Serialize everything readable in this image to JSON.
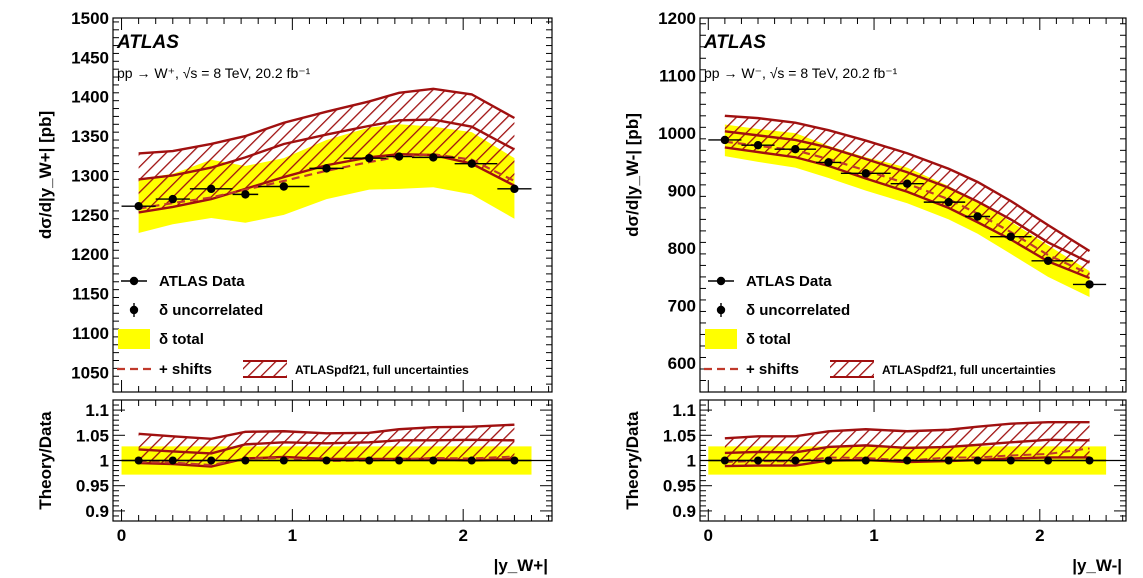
{
  "colors": {
    "total_band": "#ffff00",
    "hatch": "#a01010",
    "shift_line": "#c0392b",
    "data": "#000000"
  },
  "chart_data": [
    {
      "type": "line",
      "panel": "left",
      "atlas_label": "ATLAS",
      "process_label": "pp → W⁺, √s = 8 TeV, 20.2 fb⁻¹",
      "ylabel": "dσ/d|y_W+| [pb]",
      "xlabel": "|y_W+|",
      "ylim": [
        1025,
        1500
      ],
      "xlim": [
        -0.05,
        2.52
      ],
      "yticks": [
        "1050",
        "1100",
        "1150",
        "1200",
        "1250",
        "1300",
        "1350",
        "1400",
        "1450",
        "1500"
      ],
      "xticks": [
        "0",
        "1",
        "2"
      ],
      "legend": {
        "data": "ATLAS Data",
        "uncorr": "δ uncorrelated",
        "total": "δ total",
        "shifts": "+ shifts",
        "theory": "ATLASpdf21, full uncertainties"
      },
      "data_points": {
        "x": [
          0.1,
          0.3,
          0.525,
          0.725,
          0.95,
          1.2,
          1.45,
          1.625,
          1.825,
          2.05,
          2.3
        ],
        "xlo": [
          0.0,
          0.2,
          0.4,
          0.65,
          0.8,
          1.1,
          1.3,
          1.55,
          1.7,
          1.95,
          2.2
        ],
        "xhi": [
          0.2,
          0.4,
          0.65,
          0.8,
          1.1,
          1.3,
          1.55,
          1.7,
          1.95,
          2.2,
          2.4
        ],
        "y": [
          1261,
          1270,
          1283,
          1276,
          1286,
          1309,
          1322,
          1324,
          1323,
          1315,
          1283
        ]
      },
      "total_band": {
        "x": [
          0.1,
          0.3,
          0.525,
          0.725,
          0.95,
          1.2,
          1.45,
          1.625,
          1.825,
          2.05,
          2.3
        ],
        "lo": [
          1227,
          1238,
          1246,
          1240,
          1250,
          1270,
          1282,
          1283,
          1285,
          1276,
          1245
        ],
        "hi": [
          1296,
          1302,
          1320,
          1312,
          1322,
          1345,
          1361,
          1365,
          1362,
          1355,
          1322
        ]
      },
      "theory_band": {
        "x": [
          0.1,
          0.3,
          0.525,
          0.725,
          0.95,
          1.2,
          1.45,
          1.625,
          1.825,
          2.05,
          2.3
        ],
        "lo": [
          1253,
          1260,
          1270,
          1283,
          1298,
          1313,
          1323,
          1327,
          1326,
          1315,
          1287
        ],
        "mid": [
          1295,
          1300,
          1310,
          1323,
          1340,
          1352,
          1363,
          1370,
          1371,
          1362,
          1333
        ],
        "hi": [
          1328,
          1331,
          1340,
          1350,
          1367,
          1381,
          1394,
          1405,
          1410,
          1403,
          1373
        ]
      },
      "shift_line": {
        "x": [
          0.1,
          0.3,
          0.525,
          0.725,
          0.95,
          1.2,
          1.45,
          1.625,
          1.825,
          2.05,
          2.3
        ],
        "y": [
          1258,
          1265,
          1272,
          1282,
          1293,
          1306,
          1317,
          1324,
          1327,
          1320,
          1293
        ]
      },
      "ratio": {
        "ylabel": "Theory/Data",
        "ylim": [
          0.88,
          1.12
        ],
        "yticks": [
          "0.9",
          "0.95",
          "1",
          "1.05",
          "1.1"
        ],
        "total_lo": [
          0.972,
          0.972,
          0.972,
          0.972,
          0.972,
          0.972,
          0.972,
          0.972,
          0.972,
          0.972,
          0.972
        ],
        "total_hi": [
          1.028,
          1.028,
          1.028,
          1.028,
          1.028,
          1.028,
          1.028,
          1.028,
          1.028,
          1.028,
          1.028
        ],
        "theory_lo": [
          0.995,
          0.993,
          0.988,
          1.004,
          1.007,
          1.003,
          1.003,
          1.003,
          1.003,
          1.0,
          1.003
        ],
        "theory_mid": [
          1.022,
          1.018,
          1.014,
          1.032,
          1.036,
          1.034,
          1.036,
          1.04,
          1.04,
          1.041,
          1.04
        ],
        "theory_hi": [
          1.053,
          1.048,
          1.043,
          1.057,
          1.058,
          1.054,
          1.055,
          1.062,
          1.066,
          1.067,
          1.071
        ],
        "shift": [
          0.997,
          0.996,
          0.991,
          1.004,
          1.005,
          0.999,
          1.0,
          1.002,
          1.005,
          1.004,
          1.008
        ]
      }
    },
    {
      "type": "line",
      "panel": "right",
      "atlas_label": "ATLAS",
      "process_label": "pp → W⁻, √s = 8 TeV, 20.2 fb⁻¹",
      "ylabel": "dσ/d|y_W-| [pb]",
      "xlabel": "|y_W-|",
      "ylim": [
        550,
        1200
      ],
      "xlim": [
        -0.05,
        2.52
      ],
      "yticks": [
        "600",
        "700",
        "800",
        "900",
        "1000",
        "1100",
        "1200"
      ],
      "xticks": [
        "0",
        "1",
        "2"
      ],
      "legend": {
        "data": "ATLAS Data",
        "uncorr": "δ uncorrelated",
        "total": "δ total",
        "shifts": "+ shifts",
        "theory": "ATLASpdf21, full uncertainties"
      },
      "data_points": {
        "x": [
          0.1,
          0.3,
          0.525,
          0.725,
          0.95,
          1.2,
          1.45,
          1.625,
          1.825,
          2.05,
          2.3
        ],
        "xlo": [
          0.0,
          0.2,
          0.4,
          0.65,
          0.8,
          1.1,
          1.3,
          1.55,
          1.7,
          1.95,
          2.2
        ],
        "xhi": [
          0.2,
          0.4,
          0.65,
          0.8,
          1.1,
          1.3,
          1.55,
          1.7,
          1.95,
          2.2,
          2.4
        ],
        "y": [
          988,
          979,
          972,
          949,
          930,
          912,
          880,
          855,
          820,
          778,
          737
        ]
      },
      "total_band": {
        "x": [
          0.1,
          0.3,
          0.525,
          0.725,
          0.95,
          1.2,
          1.45,
          1.625,
          1.825,
          2.05,
          2.3
        ],
        "lo": [
          960,
          950,
          940,
          922,
          900,
          878,
          850,
          825,
          790,
          750,
          715
        ],
        "hi": [
          1015,
          1007,
          1000,
          978,
          958,
          940,
          908,
          880,
          846,
          805,
          760
        ]
      },
      "theory_band": {
        "x": [
          0.1,
          0.3,
          0.525,
          0.725,
          0.95,
          1.2,
          1.45,
          1.625,
          1.825,
          2.05,
          2.3
        ],
        "lo": [
          975,
          967,
          958,
          943,
          921,
          898,
          870,
          845,
          815,
          777,
          748
        ],
        "mid": [
          1003,
          996,
          988,
          975,
          955,
          932,
          905,
          881,
          850,
          810,
          775
        ],
        "hi": [
          1030,
          1026,
          1018,
          1005,
          987,
          965,
          938,
          915,
          882,
          840,
          795
        ]
      },
      "shift_line": {
        "x": [
          0.1,
          0.3,
          0.525,
          0.725,
          0.95,
          1.2,
          1.45,
          1.625,
          1.825,
          2.05,
          2.3
        ],
        "y": [
          985,
          978,
          970,
          955,
          935,
          912,
          885,
          860,
          828,
          788,
          755
        ]
      },
      "ratio": {
        "ylabel": "Theory/Data",
        "ylim": [
          0.88,
          1.12
        ],
        "yticks": [
          "0.9",
          "0.95",
          "1",
          "1.05",
          "1.1"
        ],
        "total_lo": [
          0.972,
          0.972,
          0.972,
          0.972,
          0.972,
          0.972,
          0.972,
          0.972,
          0.972,
          0.972,
          0.972
        ],
        "total_hi": [
          1.028,
          1.028,
          1.028,
          1.028,
          1.028,
          1.028,
          1.028,
          1.028,
          1.028,
          1.028,
          1.028
        ],
        "theory_lo": [
          0.989,
          0.99,
          0.99,
          1.0,
          1.001,
          0.997,
          0.999,
          1.001,
          1.004,
          1.006,
          1.006
        ],
        "theory_mid": [
          1.015,
          1.017,
          1.016,
          1.027,
          1.03,
          1.025,
          1.027,
          1.031,
          1.036,
          1.041,
          1.04
        ],
        "theory_hi": [
          1.044,
          1.048,
          1.048,
          1.058,
          1.062,
          1.058,
          1.061,
          1.067,
          1.073,
          1.076,
          1.076
        ],
        "shift": [
          0.997,
          0.999,
          0.998,
          1.006,
          1.005,
          1.0,
          1.006,
          1.006,
          1.01,
          1.013,
          1.024
        ]
      }
    }
  ]
}
